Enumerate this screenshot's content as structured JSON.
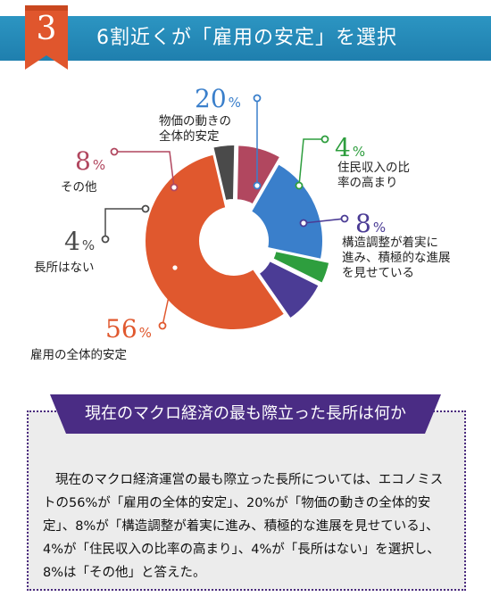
{
  "section": {
    "number": "3",
    "title": "6割近くが「雇用の安定」を選択"
  },
  "colors": {
    "banner": "#2387b6",
    "badge": "#e0562d",
    "ribbon": "#4a2c84",
    "panel_border": "#4a2a7e"
  },
  "chart_data": {
    "type": "pie",
    "style": "donut",
    "unit": "%",
    "slices": [
      {
        "label": "物価の動きの全体的安定",
        "label_lines": [
          "物価の動きの",
          "全体的安定"
        ],
        "value": 20,
        "value_text": "20",
        "color": "#3a7fcb"
      },
      {
        "label": "住民収入の比率の高まり",
        "label_lines": [
          "住民収入の比",
          "率の高まり"
        ],
        "value": 4,
        "value_text": "4",
        "color": "#2e9e3e"
      },
      {
        "label": "構造調整が着実に進み、積極的な進展を見せている",
        "label_lines": [
          "構造調整が着実に",
          "進み、積極的な進展",
          "を見せている"
        ],
        "value": 8,
        "value_text": "8",
        "color": "#4b3c95"
      },
      {
        "label": "雇用の全体的安定",
        "label_lines": [
          "雇用の全体的安定"
        ],
        "value": 56,
        "value_text": "56",
        "color": "#e0582e"
      },
      {
        "label": "長所はない",
        "label_lines": [
          "長所はない"
        ],
        "value": 4,
        "value_text": "4",
        "color": "#4a4a4a"
      },
      {
        "label": "その他",
        "label_lines": [
          "その他"
        ],
        "value": 8,
        "value_text": "8",
        "color": "#b1475f"
      }
    ]
  },
  "summary": {
    "heading": "現在のマクロ経済の最も際立った長所は何か",
    "text": "現在のマクロ経済運営の最も際立った長所については、エコノミストの56%が「雇用の全体的安定」、20%が「物価の動きの全体的安定」、8%が「構造調整が着実に進み、積極的な進展を見せている」、4%が「住民収入の比率の高まり」、4%が「長所はない」を選択し、8%は「その他」と答えた。"
  }
}
